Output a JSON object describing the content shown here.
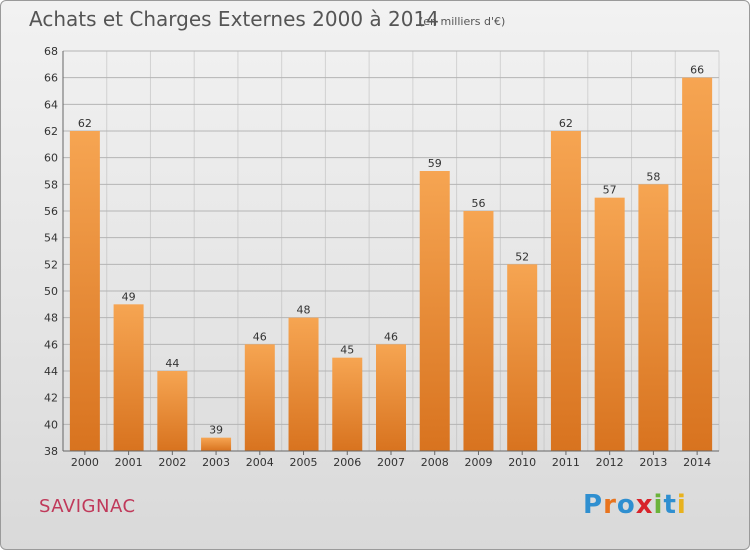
{
  "header": {
    "title": "Achats et Charges Externes 2000 à 2014",
    "subtitle": "(en milliers d'€)"
  },
  "footer": {
    "commune": "SAVIGNAC",
    "logo_text": "Proxiti"
  },
  "colors": {
    "bar_light": "#f6a552",
    "bar_dark": "#d8731f",
    "grid": "#b5b5b5",
    "commune": "#c0395a"
  },
  "chart_data": {
    "type": "bar",
    "title": "Achats et Charges Externes 2000 à 2014",
    "subtitle": "(en milliers d'€)",
    "xlabel": "",
    "ylabel": "",
    "categories": [
      "2000",
      "2001",
      "2002",
      "2003",
      "2004",
      "2005",
      "2006",
      "2007",
      "2008",
      "2009",
      "2010",
      "2011",
      "2012",
      "2013",
      "2014"
    ],
    "values": [
      62,
      49,
      44,
      39,
      46,
      48,
      45,
      46,
      59,
      56,
      52,
      62,
      57,
      58,
      66
    ],
    "ylim": [
      38,
      68
    ],
    "yticks": [
      38,
      40,
      42,
      44,
      46,
      48,
      50,
      52,
      54,
      56,
      58,
      60,
      62,
      64,
      66,
      68
    ],
    "grid": true,
    "data_labels": true
  }
}
